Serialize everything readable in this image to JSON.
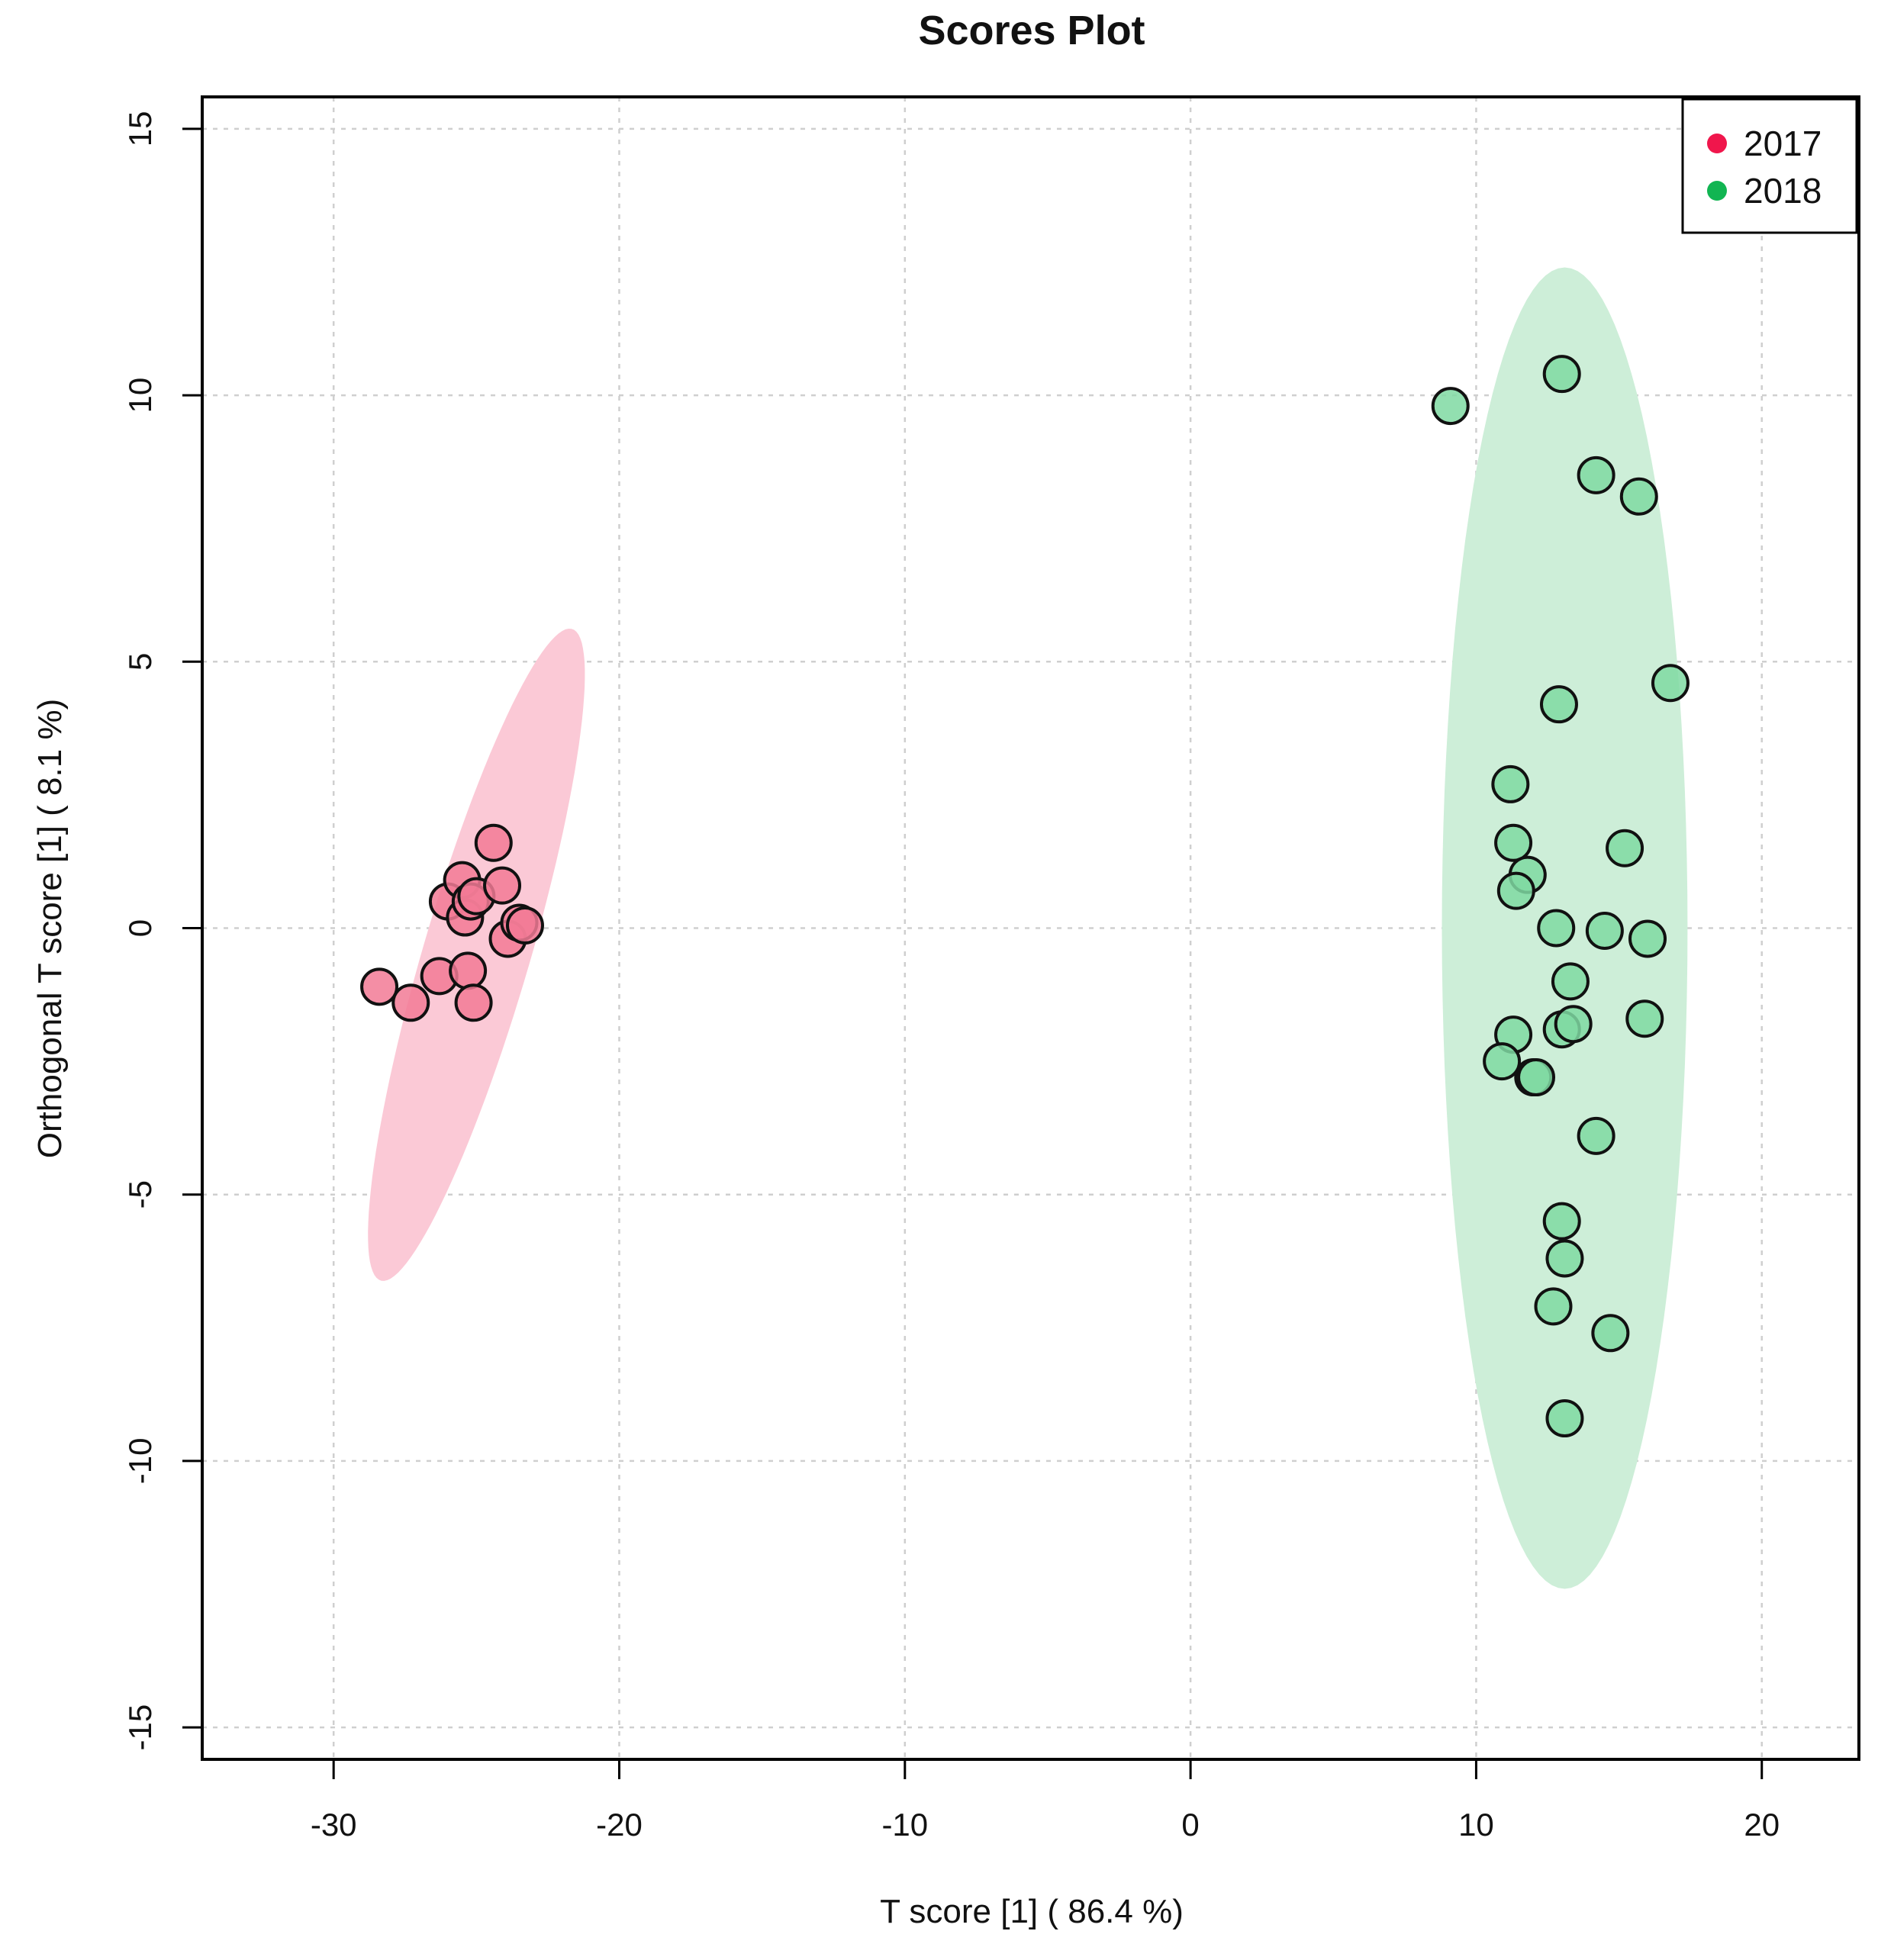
{
  "chart_data": {
    "type": "scatter",
    "title": "Scores Plot",
    "xlabel": "T score [1] ( 86.4 %)",
    "ylabel": "Orthogonal T score [1] ( 8.1 %)",
    "xlim": [
      -34.6,
      23.4
    ],
    "ylim": [
      -15.6,
      15.6
    ],
    "x_ticks": [
      -30,
      -20,
      -10,
      0,
      10,
      20
    ],
    "x_tick_labels": [
      "-30",
      "-20",
      "-10",
      "0",
      "10",
      "20"
    ],
    "y_ticks": [
      -15,
      -10,
      -5,
      0,
      5,
      10,
      15
    ],
    "y_tick_labels": [
      "-15",
      "-10",
      "-5",
      "0",
      "5",
      "10",
      "15"
    ],
    "grid": true,
    "legend_position": "top-right",
    "series": [
      {
        "name": "2017",
        "color": "#f0164c",
        "point_fill": "#f27a95",
        "ellipse_fill": "#fbc9d6",
        "ellipse": {
          "cx": -25.0,
          "cy": -0.5,
          "rx_data": 7.0,
          "ry_data": 1.7,
          "angle_deg": 60
        },
        "points": [
          [
            -28.4,
            -1.1
          ],
          [
            -27.3,
            -1.4
          ],
          [
            -26.3,
            -0.9
          ],
          [
            -25.3,
            -0.8
          ],
          [
            -25.1,
            -1.4
          ],
          [
            -26.0,
            0.5
          ],
          [
            -25.5,
            0.9
          ],
          [
            -25.4,
            0.2
          ],
          [
            -25.2,
            0.5
          ],
          [
            -25.0,
            0.6
          ],
          [
            -24.4,
            1.6
          ],
          [
            -24.1,
            0.8
          ],
          [
            -23.9,
            -0.2
          ],
          [
            -23.5,
            0.1
          ],
          [
            -23.3,
            0.05
          ]
        ]
      },
      {
        "name": "2018",
        "color": "#11b552",
        "point_fill": "#7fd9a2",
        "ellipse_fill": "#cdeed8",
        "ellipse": {
          "cx": 13.1,
          "cy": 0.0,
          "rx_data": 4.3,
          "ry_data": 12.4,
          "angle_deg": 0
        },
        "points": [
          [
            9.1,
            9.8
          ],
          [
            13.0,
            10.4
          ],
          [
            14.2,
            8.5
          ],
          [
            15.7,
            8.1
          ],
          [
            16.8,
            4.6
          ],
          [
            12.9,
            4.2
          ],
          [
            11.2,
            2.7
          ],
          [
            11.3,
            1.6
          ],
          [
            11.8,
            1.0
          ],
          [
            11.4,
            0.7
          ],
          [
            15.2,
            1.5
          ],
          [
            12.8,
            0.0
          ],
          [
            14.5,
            -0.05
          ],
          [
            16.0,
            -0.2
          ],
          [
            13.3,
            -1.0
          ],
          [
            15.9,
            -1.7
          ],
          [
            13.0,
            -1.9
          ],
          [
            13.4,
            -1.8
          ],
          [
            11.3,
            -2.0
          ],
          [
            10.9,
            -2.5
          ],
          [
            12.0,
            -2.8
          ],
          [
            12.1,
            -2.8
          ],
          [
            14.2,
            -3.9
          ],
          [
            13.0,
            -5.5
          ],
          [
            13.1,
            -6.2
          ],
          [
            12.7,
            -7.1
          ],
          [
            14.7,
            -7.6
          ],
          [
            13.1,
            -9.2
          ]
        ]
      }
    ]
  }
}
